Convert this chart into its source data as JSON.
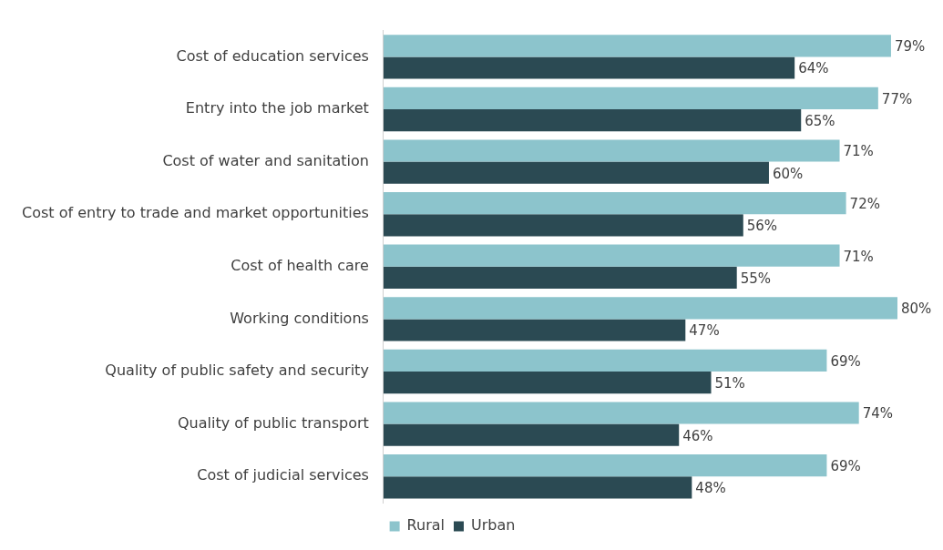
{
  "chart_data": {
    "type": "bar",
    "orientation": "horizontal",
    "categories": [
      "Cost of education services",
      "Entry into the job market",
      "Cost of water and sanitation",
      "Cost of entry to trade and market opportunities",
      "Cost of health care",
      "Working conditions",
      "Quality of public safety and security",
      "Quality of public transport",
      "Cost of judicial services"
    ],
    "series": [
      {
        "name": "Rural",
        "color": "#8cc4cc",
        "values": [
          79,
          77,
          71,
          72,
          71,
          80,
          69,
          74,
          69
        ],
        "value_labels": [
          "79%",
          "77%",
          "71%",
          "72%",
          "71%",
          "80%",
          "69%",
          "74%",
          "69%"
        ]
      },
      {
        "name": "Urban",
        "color": "#2b4a53",
        "values": [
          64,
          65,
          60,
          56,
          55,
          47,
          51,
          46,
          48
        ],
        "value_labels": [
          "64%",
          "65%",
          "60%",
          "56%",
          "55%",
          "47%",
          "51%",
          "46%",
          "48%"
        ]
      }
    ],
    "legend": "bottom",
    "grid": false
  }
}
